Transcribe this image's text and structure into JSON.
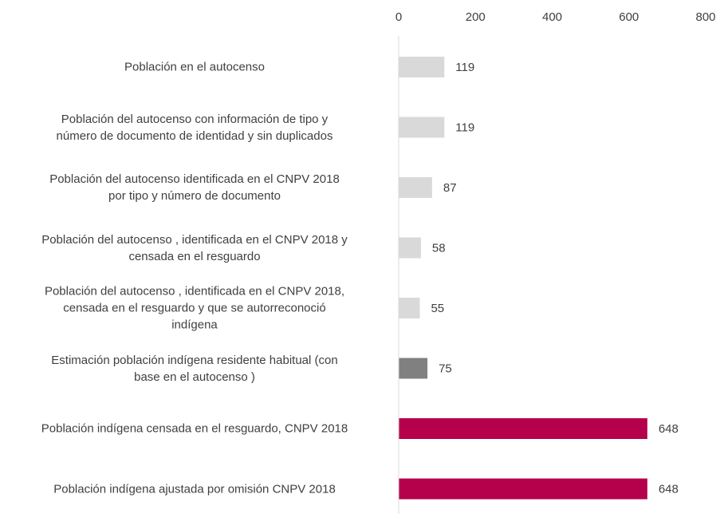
{
  "chart_data": {
    "type": "barh",
    "categories": [
      "Población en el autocenso",
      "Población del autocenso  con información de tipo y\nnúmero de documento de identidad y sin duplicados",
      "Población del autocenso  identificada en el CNPV 2018\npor tipo y número de documento",
      "Población del autocenso , identificada en el CNPV 2018 y\ncensada en el resguardo",
      "Población del autocenso , identificada en el CNPV 2018,\ncensada en el resguardo y que se autorreconoció\nindígena",
      "Estimación población indígena residente habitual (con\nbase en el autocenso )",
      "Población indígena censada en el resguardo, CNPV 2018",
      "Población indígena ajustada por omisión  CNPV 2018"
    ],
    "values": [
      119,
      119,
      87,
      58,
      55,
      75,
      648,
      648
    ],
    "colors": [
      "#d9d9d9",
      "#d9d9d9",
      "#d9d9d9",
      "#d9d9d9",
      "#d9d9d9",
      "#808080",
      "#b5004b",
      "#b5004b"
    ],
    "xlim": [
      0,
      800
    ],
    "xticks": [
      0,
      200,
      400,
      600,
      800
    ],
    "grid": false
  }
}
